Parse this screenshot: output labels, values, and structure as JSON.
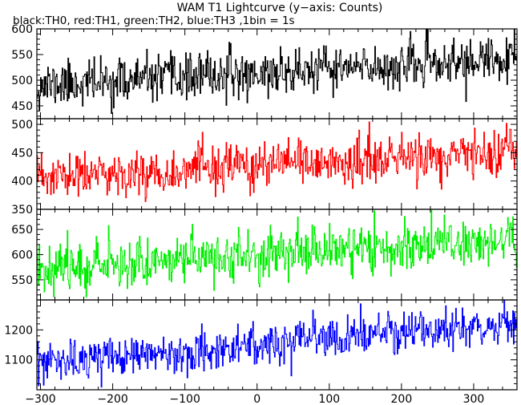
{
  "title": "WAM T1 Lightcurve (y−axis: Counts)",
  "subtitle": "black:TH0, red:TH1, green:TH2, blue:TH3 ,1bin = 1s",
  "chart_data": {
    "type": "line",
    "x_axis": {
      "range": [
        -305,
        360
      ],
      "ticks": [
        -300,
        -200,
        -100,
        0,
        100,
        200,
        300
      ],
      "tick_labels": [
        "−300",
        "−200",
        "−100",
        "0",
        "100",
        "200",
        "300"
      ],
      "bin_width": 1
    },
    "grid": false,
    "legend": "none",
    "panels": [
      {
        "name": "TH0",
        "color": "#000000",
        "ylim": [
          425,
          600
        ],
        "yticks": [
          450,
          500,
          550,
          600
        ],
        "trend_start": 490,
        "trend_end": 540,
        "noise_sd": 22,
        "seed": 11
      },
      {
        "name": "TH1",
        "color": "#ff0000",
        "ylim": [
          350,
          510
        ],
        "yticks": [
          350,
          400,
          450,
          500
        ],
        "trend_start": 405,
        "trend_end": 450,
        "noise_sd": 20,
        "seed": 23
      },
      {
        "name": "TH2",
        "color": "#00ee00",
        "ylim": [
          510,
          690
        ],
        "yticks": [
          550,
          600,
          650
        ],
        "trend_start": 575,
        "trend_end": 630,
        "noise_sd": 24,
        "seed": 37
      },
      {
        "name": "TH3",
        "color": "#0000ff",
        "ylim": [
          1000,
          1300
        ],
        "yticks": [
          1100,
          1200
        ],
        "trend_start": 1085,
        "trend_end": 1225,
        "noise_sd": 33,
        "seed": 53
      }
    ]
  }
}
